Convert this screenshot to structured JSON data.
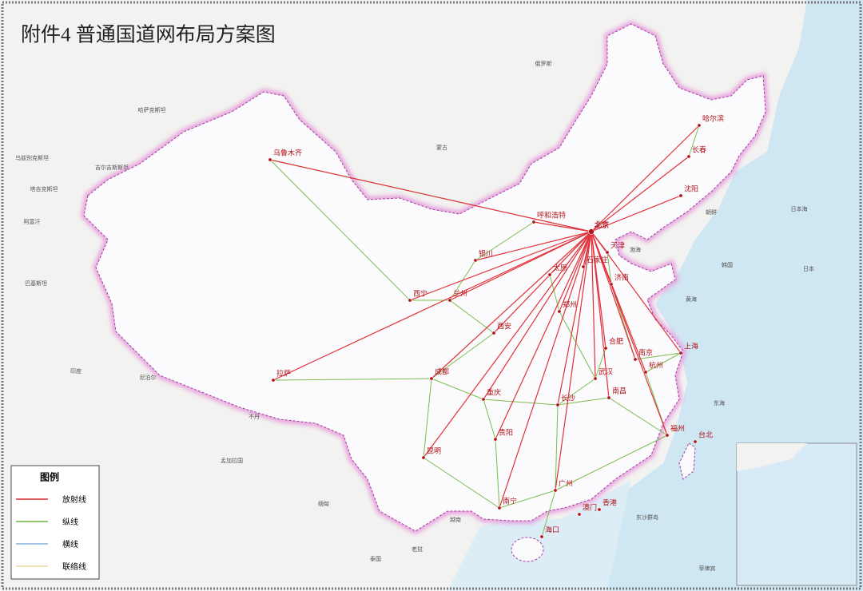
{
  "title": "附件4 普通国道网布局方案图",
  "legend": {
    "title": "图例",
    "items": [
      "放射线",
      "纵线",
      "横线",
      "联络线"
    ]
  },
  "cities": [
    "北京",
    "天津",
    "石家庄",
    "太原",
    "济南",
    "呼和浩特",
    "银川",
    "兰州",
    "西宁",
    "乌鲁木齐",
    "拉萨",
    "西安",
    "郑州",
    "合肥",
    "南京",
    "上海",
    "杭州",
    "武汉",
    "成都",
    "重庆",
    "长沙",
    "南昌",
    "福州",
    "台北",
    "贵阳",
    "昆明",
    "南宁",
    "广州",
    "香港",
    "澳门",
    "海口",
    "哈尔滨",
    "长春",
    "沈阳"
  ],
  "regions": [
    "俄罗斯",
    "哈萨克斯坦",
    "蒙古",
    "乌兹别克斯坦",
    "吉尔吉斯斯坦",
    "塔吉克斯坦",
    "阿富汗",
    "巴基斯坦",
    "印度",
    "尼泊尔",
    "不丹",
    "孟加拉国",
    "缅甸",
    "老挝",
    "泰国",
    "越南",
    "朝鲜",
    "韩国",
    "日本",
    "日本海",
    "渤海",
    "黄海",
    "东海",
    "东沙群岛",
    "菲律宾"
  ]
}
